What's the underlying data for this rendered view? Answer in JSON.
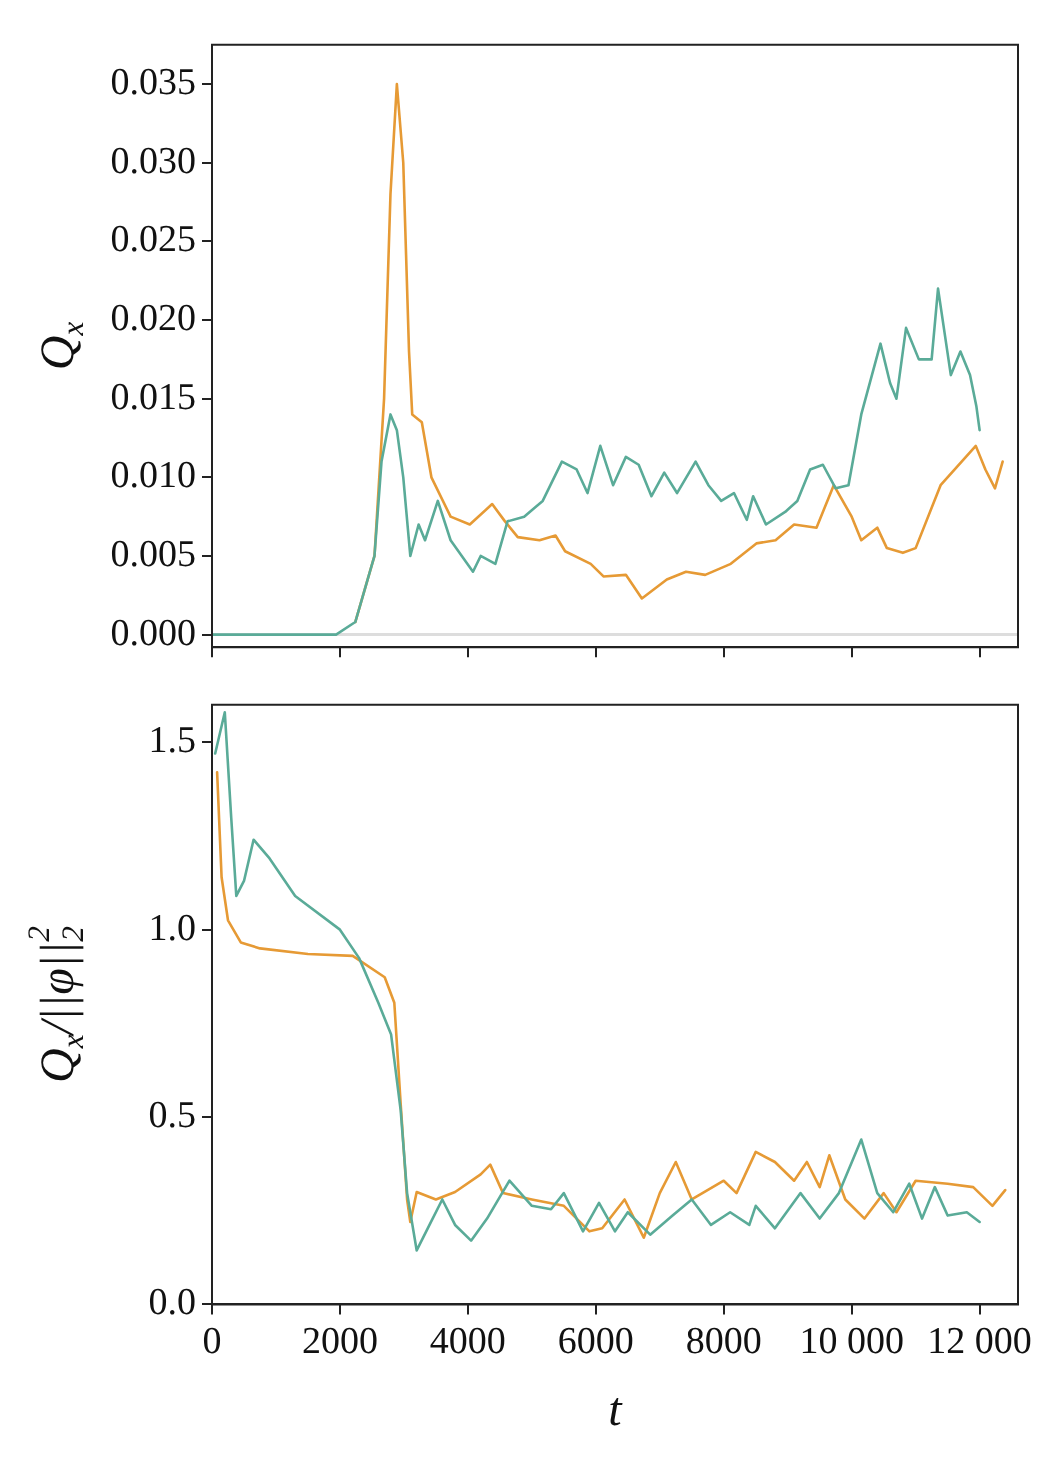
{
  "chart_data": [
    {
      "type": "line",
      "ylabel": "Q$_{x}$",
      "tick_labels": "y",
      "legend": false,
      "marker": "none",
      "line_style": "solid",
      "xlim": [
        0,
        12600
      ],
      "xticks": [
        0,
        2000,
        4000,
        6000,
        8000,
        10000,
        12000
      ],
      "ylim": [
        -0.0008,
        0.0375
      ],
      "yticks": [
        {
          "value": 0,
          "label": "0.000"
        },
        {
          "value": 0.005,
          "label": "0.005"
        },
        {
          "value": 0.01,
          "label": "0.010"
        },
        {
          "value": 0.015,
          "label": "0.015"
        },
        {
          "value": 0.02,
          "label": "0.020"
        },
        {
          "value": 0.025,
          "label": "0.025"
        },
        {
          "value": 0.03,
          "label": "0.030"
        },
        {
          "value": 0.035,
          "label": "0.035"
        }
      ],
      "ref_lines": [
        {
          "axis": "y",
          "value": 0,
          "color": "#dddddd"
        }
      ],
      "series": [
        {
          "color": "#e69a35",
          "x": [
            2240,
            2540,
            2690,
            2790,
            2890,
            2990,
            3080,
            3130,
            3280,
            3430,
            3730,
            4030,
            4380,
            4580,
            4780,
            5120,
            5370,
            5520,
            5920,
            6120,
            6470,
            6720,
            7110,
            7410,
            7710,
            8110,
            8510,
            8810,
            9100,
            9450,
            9720,
            10000,
            10150,
            10400,
            10550,
            10800,
            11000,
            11390,
            11940,
            12090,
            12240,
            12360
          ],
          "values": [
            0.0008,
            0.005,
            0.015,
            0.028,
            0.035,
            0.03,
            0.018,
            0.014,
            0.0135,
            0.01,
            0.0075,
            0.007,
            0.0083,
            0.0072,
            0.0062,
            0.006,
            0.0063,
            0.0053,
            0.0045,
            0.0037,
            0.0038,
            0.0023,
            0.0035,
            0.004,
            0.0038,
            0.0045,
            0.0058,
            0.006,
            0.007,
            0.0068,
            0.0095,
            0.0075,
            0.006,
            0.0068,
            0.0055,
            0.0052,
            0.0055,
            0.0095,
            0.012,
            0.0105,
            0.0093,
            0.011
          ]
        },
        {
          "color": "#5aab98",
          "x": [
            0,
            1940,
            2240,
            2540,
            2650,
            2790,
            2890,
            2990,
            3100,
            3230,
            3330,
            3530,
            3730,
            4080,
            4200,
            4430,
            4620,
            4880,
            5170,
            5470,
            5700,
            5870,
            6070,
            6270,
            6470,
            6670,
            6870,
            7070,
            7270,
            7560,
            7760,
            7960,
            8160,
            8360,
            8460,
            8660,
            8960,
            9150,
            9350,
            9550,
            9750,
            9950,
            10150,
            10450,
            10600,
            10700,
            10850,
            11050,
            11250,
            11350,
            11550,
            11700,
            11850,
            11950,
            12000
          ],
          "values": [
            0,
            0,
            0.0008,
            0.005,
            0.011,
            0.014,
            0.013,
            0.01,
            0.005,
            0.007,
            0.006,
            0.0085,
            0.006,
            0.004,
            0.005,
            0.0045,
            0.0072,
            0.0075,
            0.0085,
            0.011,
            0.0105,
            0.009,
            0.012,
            0.0095,
            0.0113,
            0.0108,
            0.0088,
            0.0103,
            0.009,
            0.011,
            0.0095,
            0.0085,
            0.009,
            0.0073,
            0.0088,
            0.007,
            0.0078,
            0.0085,
            0.0105,
            0.0108,
            0.0093,
            0.0095,
            0.014,
            0.0185,
            0.016,
            0.015,
            0.0195,
            0.0175,
            0.0175,
            0.022,
            0.0165,
            0.018,
            0.0165,
            0.0145,
            0.013
          ]
        }
      ]
    },
    {
      "type": "line",
      "xlabel": "t",
      "ylabel": "Q$_{x}$/||φ||$_{2}$$^{2}$",
      "legend": false,
      "marker": "none",
      "line_style": "solid",
      "xlim": [
        0,
        12600
      ],
      "xticks": [
        0,
        2000,
        4000,
        6000,
        8000,
        {
          "value": 10000,
          "label": "10 000"
        },
        {
          "value": 12000,
          "label": "12 000"
        }
      ],
      "ylim": [
        0,
        1.6
      ],
      "yticks": [
        {
          "value": 0,
          "label": "0.0"
        },
        {
          "value": 0.5,
          "label": "0.5"
        },
        {
          "value": 1,
          "label": "1.0"
        },
        {
          "value": 1.5,
          "label": "1.5"
        }
      ],
      "series": [
        {
          "color": "#e69a35",
          "x": [
            80,
            150,
            250,
            450,
            750,
            1500,
            2200,
            2700,
            2850,
            2950,
            3050,
            3100,
            3200,
            3500,
            3800,
            4200,
            4350,
            4550,
            5000,
            5500,
            5900,
            6100,
            6450,
            6750,
            7000,
            7250,
            7500,
            8000,
            8200,
            8500,
            8800,
            9100,
            9300,
            9500,
            9650,
            9900,
            10200,
            10500,
            10700,
            11000,
            11500,
            11900,
            12200,
            12400
          ],
          "values": [
            1.42,
            1.14,
            1.025,
            0.966,
            0.95,
            0.935,
            0.93,
            0.873,
            0.805,
            0.534,
            0.28,
            0.22,
            0.3,
            0.28,
            0.3,
            0.347,
            0.373,
            0.297,
            0.28,
            0.263,
            0.195,
            0.203,
            0.28,
            0.178,
            0.297,
            0.38,
            0.28,
            0.33,
            0.297,
            0.407,
            0.38,
            0.33,
            0.38,
            0.313,
            0.398,
            0.28,
            0.229,
            0.297,
            0.246,
            0.33,
            0.322,
            0.313,
            0.263,
            0.305
          ]
        },
        {
          "color": "#5aab98",
          "x": [
            50,
            200,
            300,
            380,
            500,
            650,
            900,
            1300,
            2000,
            2300,
            2600,
            2800,
            2950,
            3050,
            3200,
            3400,
            3600,
            3800,
            4050,
            4300,
            4650,
            5000,
            5300,
            5500,
            5800,
            6050,
            6300,
            6500,
            6850,
            7200,
            7500,
            7800,
            8100,
            8400,
            8500,
            8800,
            9200,
            9500,
            9800,
            10150,
            10400,
            10650,
            10900,
            11100,
            11300,
            11500,
            11800,
            12000
          ],
          "values": [
            1.47,
            1.58,
            1.3,
            1.09,
            1.13,
            1.24,
            1.19,
            1.09,
            1.0,
            0.924,
            0.805,
            0.72,
            0.517,
            0.297,
            0.144,
            0.212,
            0.28,
            0.212,
            0.17,
            0.229,
            0.33,
            0.263,
            0.254,
            0.297,
            0.195,
            0.271,
            0.195,
            0.246,
            0.186,
            0.237,
            0.28,
            0.212,
            0.246,
            0.212,
            0.263,
            0.203,
            0.297,
            0.229,
            0.297,
            0.44,
            0.297,
            0.246,
            0.322,
            0.229,
            0.313,
            0.237,
            0.246,
            0.22
          ]
        }
      ]
    }
  ]
}
